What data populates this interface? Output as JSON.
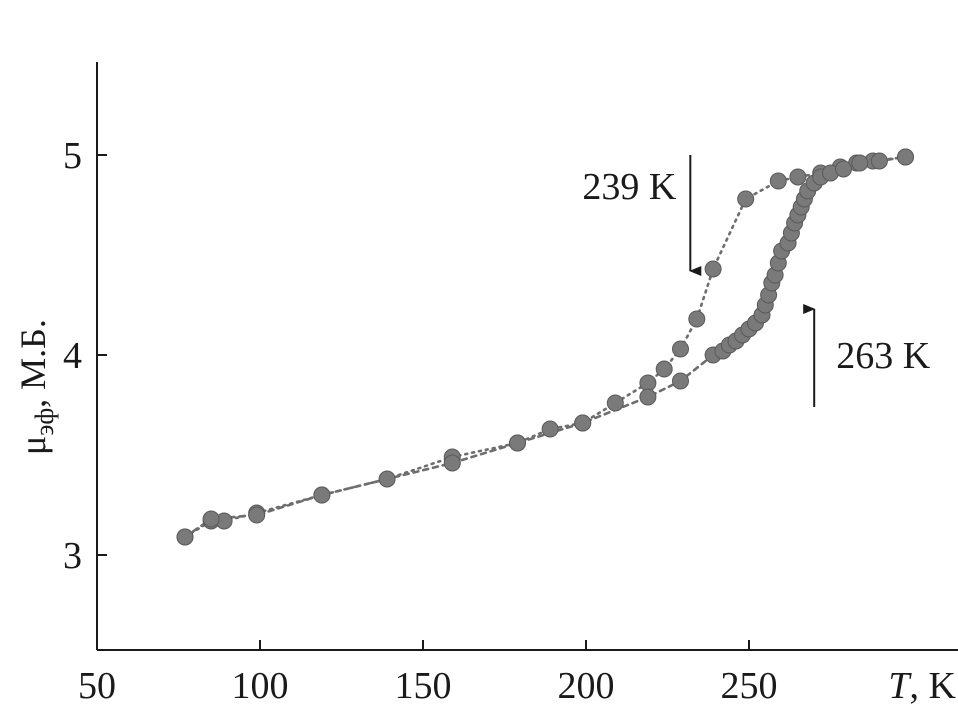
{
  "chart_data": {
    "type": "scatter",
    "xlabel": "T, K",
    "xlabel_italic": "T",
    "xlabel_unit": ", K",
    "ylabel": "μэф, М.Б.",
    "ylabel_main": "μ",
    "ylabel_sub": "эф",
    "ylabel_unit": ", М.Б.",
    "xlim": [
      50,
      310
    ],
    "ylim": [
      2.5,
      5.5
    ],
    "xticks": [
      50,
      100,
      150,
      200,
      250
    ],
    "yticks": [
      3,
      4,
      5
    ],
    "grid": false,
    "marker_color": "#7a7a7a",
    "line_color": "#6e6e6e",
    "series": [
      {
        "direction": "cooling",
        "line": "dotted",
        "points": [
          [
            77,
            3.09
          ],
          [
            85,
            3.17
          ],
          [
            89,
            3.17
          ],
          [
            99,
            3.21
          ],
          [
            119,
            3.3
          ],
          [
            139,
            3.38
          ],
          [
            159,
            3.49
          ],
          [
            179,
            3.56
          ],
          [
            189,
            3.63
          ],
          [
            199,
            3.66
          ],
          [
            209,
            3.76
          ],
          [
            219,
            3.86
          ],
          [
            224,
            3.93
          ],
          [
            229,
            4.03
          ],
          [
            234,
            4.18
          ],
          [
            239,
            4.43
          ],
          [
            249,
            4.78
          ],
          [
            259,
            4.87
          ],
          [
            265,
            4.89
          ],
          [
            272,
            4.91
          ],
          [
            278,
            4.94
          ],
          [
            283,
            4.96
          ],
          [
            288,
            4.97
          ],
          [
            298,
            4.99
          ]
        ]
      },
      {
        "direction": "heating",
        "line": "dashed",
        "points": [
          [
            77,
            3.09
          ],
          [
            85,
            3.18
          ],
          [
            99,
            3.2
          ],
          [
            119,
            3.3
          ],
          [
            159,
            3.46
          ],
          [
            179,
            3.56
          ],
          [
            199,
            3.66
          ],
          [
            219,
            3.79
          ],
          [
            229,
            3.87
          ],
          [
            239,
            4.0
          ],
          [
            242,
            4.02
          ],
          [
            244,
            4.05
          ],
          [
            246,
            4.07
          ],
          [
            248,
            4.1
          ],
          [
            250,
            4.13
          ],
          [
            252,
            4.16
          ],
          [
            254,
            4.2
          ],
          [
            255,
            4.25
          ],
          [
            256,
            4.3
          ],
          [
            257,
            4.36
          ],
          [
            258,
            4.4
          ],
          [
            259,
            4.46
          ],
          [
            260,
            4.52
          ],
          [
            262,
            4.56
          ],
          [
            263,
            4.61
          ],
          [
            264,
            4.66
          ],
          [
            265,
            4.7
          ],
          [
            266,
            4.74
          ],
          [
            267,
            4.78
          ],
          [
            268,
            4.82
          ],
          [
            270,
            4.86
          ],
          [
            272,
            4.89
          ],
          [
            275,
            4.91
          ],
          [
            279,
            4.93
          ],
          [
            284,
            4.96
          ],
          [
            290,
            4.97
          ],
          [
            298,
            4.99
          ]
        ]
      }
    ],
    "annotations": [
      {
        "text": "239 K",
        "x": 232,
        "y_top": 5.0,
        "y_bottom": 4.42,
        "arrow": "down",
        "label_side": "left"
      },
      {
        "text": "263 K",
        "x": 270,
        "y_top": 4.23,
        "y_bottom": 3.74,
        "arrow": "up",
        "label_side": "right"
      }
    ]
  }
}
